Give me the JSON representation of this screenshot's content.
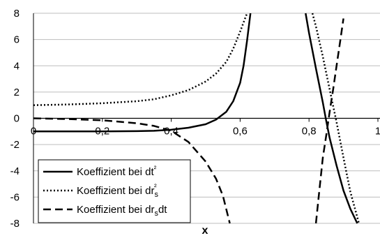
{
  "chart_data": {
    "type": "line",
    "xlabel": "x",
    "ylabel": "",
    "xlim": [
      0,
      1
    ],
    "ylim": [
      -8,
      8
    ],
    "x_ticks": [
      "0",
      "0,2",
      "0,4",
      "0,6",
      "0,8",
      "1"
    ],
    "y_ticks": [
      "8",
      "6",
      "4",
      "2",
      "0",
      "-2",
      "-4",
      "-6",
      "-8"
    ],
    "grid": "horizontal",
    "legend_position": "bottom-left",
    "series": [
      {
        "name": "Koeffizient bei dt²",
        "style": "solid",
        "x": [
          0.0,
          0.1,
          0.2,
          0.3,
          0.35,
          0.4,
          0.45,
          0.5,
          0.53,
          0.56,
          0.58,
          0.6,
          0.61,
          0.62,
          0.63,
          null,
          0.79,
          0.8,
          0.82,
          0.84,
          0.85,
          0.86,
          0.88,
          0.9,
          0.92,
          0.94
        ],
        "y": [
          -1.0,
          -1.0,
          -1.0,
          -0.98,
          -0.95,
          -0.87,
          -0.72,
          -0.45,
          -0.1,
          0.5,
          1.3,
          2.7,
          4.0,
          5.9,
          8.0,
          null,
          8.0,
          6.5,
          3.8,
          1.2,
          -0.2,
          -1.5,
          -3.6,
          -5.5,
          -6.9,
          -8.0
        ]
      },
      {
        "name": "Koeffizient bei dr_s²",
        "style": "dotted",
        "x": [
          0.0,
          0.1,
          0.2,
          0.3,
          0.35,
          0.4,
          0.45,
          0.5,
          0.53,
          0.56,
          0.58,
          0.6,
          0.61,
          0.62,
          null,
          0.81,
          0.82,
          0.84,
          0.86,
          0.88,
          0.9,
          0.92,
          0.945
        ],
        "y": [
          1.0,
          1.05,
          1.15,
          1.3,
          1.45,
          1.75,
          2.15,
          2.8,
          3.4,
          4.3,
          5.3,
          6.6,
          7.3,
          8.0,
          null,
          8.0,
          7.0,
          4.7,
          2.2,
          -0.3,
          -3.0,
          -5.6,
          -8.0
        ]
      },
      {
        "name": "Koeffizient bei dr_s dt",
        "style": "dashed",
        "x": [
          0.0,
          0.1,
          0.2,
          0.3,
          0.35,
          0.4,
          0.45,
          0.5,
          0.53,
          0.55,
          0.57,
          null,
          0.82,
          0.83,
          0.84,
          0.85,
          0.86,
          0.87,
          0.88,
          0.89,
          0.9
        ],
        "y": [
          0.0,
          -0.06,
          -0.15,
          -0.38,
          -0.58,
          -0.95,
          -1.8,
          -3.3,
          -4.6,
          -5.9,
          -8.0,
          null,
          -8.0,
          -5.5,
          -3.0,
          -1.3,
          0.5,
          2.2,
          4.0,
          5.8,
          7.6
        ]
      }
    ],
    "legend": {
      "items": [
        {
          "label": "Koeffizient bei dt",
          "sup": "²",
          "sub": ""
        },
        {
          "label": "Koeffizient bei dr",
          "sub": "s",
          "sup": "²",
          "tail": ""
        },
        {
          "label": "Koeffizient bei dr",
          "sub": "s",
          "sup": "",
          "tail": "dt"
        }
      ]
    }
  }
}
